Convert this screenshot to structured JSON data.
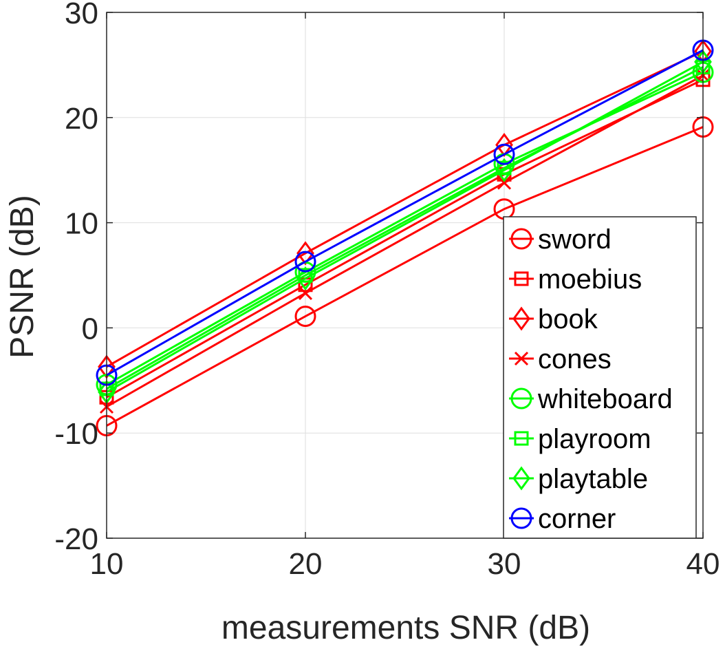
{
  "chart_data": {
    "type": "line",
    "title": "",
    "xlabel": "measurements SNR (dB)",
    "ylabel": "PSNR (dB)",
    "x": [
      10,
      20,
      30,
      40
    ],
    "xlim": [
      10,
      40
    ],
    "ylim": [
      -20,
      30
    ],
    "xticks": [
      10,
      20,
      30,
      40
    ],
    "yticks": [
      -20,
      -10,
      0,
      10,
      20,
      30
    ],
    "grid": true,
    "legend_position": "bottom-right",
    "series": [
      {
        "name": "sword",
        "color": "#ff0000",
        "marker": "circle",
        "values": [
          -9.3,
          1.1,
          11.3,
          19.1
        ]
      },
      {
        "name": "moebius",
        "color": "#ff0000",
        "marker": "square",
        "values": [
          -6.6,
          4.1,
          14.6,
          23.6
        ]
      },
      {
        "name": "book",
        "color": "#ff0000",
        "marker": "diamond",
        "values": [
          -3.7,
          7.1,
          17.4,
          26.3
        ]
      },
      {
        "name": "cones",
        "color": "#ff0000",
        "marker": "x",
        "values": [
          -7.5,
          3.3,
          13.8,
          24.0
        ]
      },
      {
        "name": "whiteboard",
        "color": "#00ff00",
        "marker": "circle",
        "values": [
          -5.4,
          5.3,
          15.6,
          24.3
        ]
      },
      {
        "name": "playroom",
        "color": "#00ff00",
        "marker": "square",
        "values": [
          -5.8,
          5.0,
          15.2,
          24.8
        ]
      },
      {
        "name": "playtable",
        "color": "#00ff00",
        "marker": "diamond",
        "values": [
          -6.1,
          4.7,
          15.0,
          25.3
        ]
      },
      {
        "name": "corner",
        "color": "#0000ff",
        "marker": "circle",
        "values": [
          -4.5,
          6.3,
          16.5,
          26.4
        ]
      }
    ]
  }
}
